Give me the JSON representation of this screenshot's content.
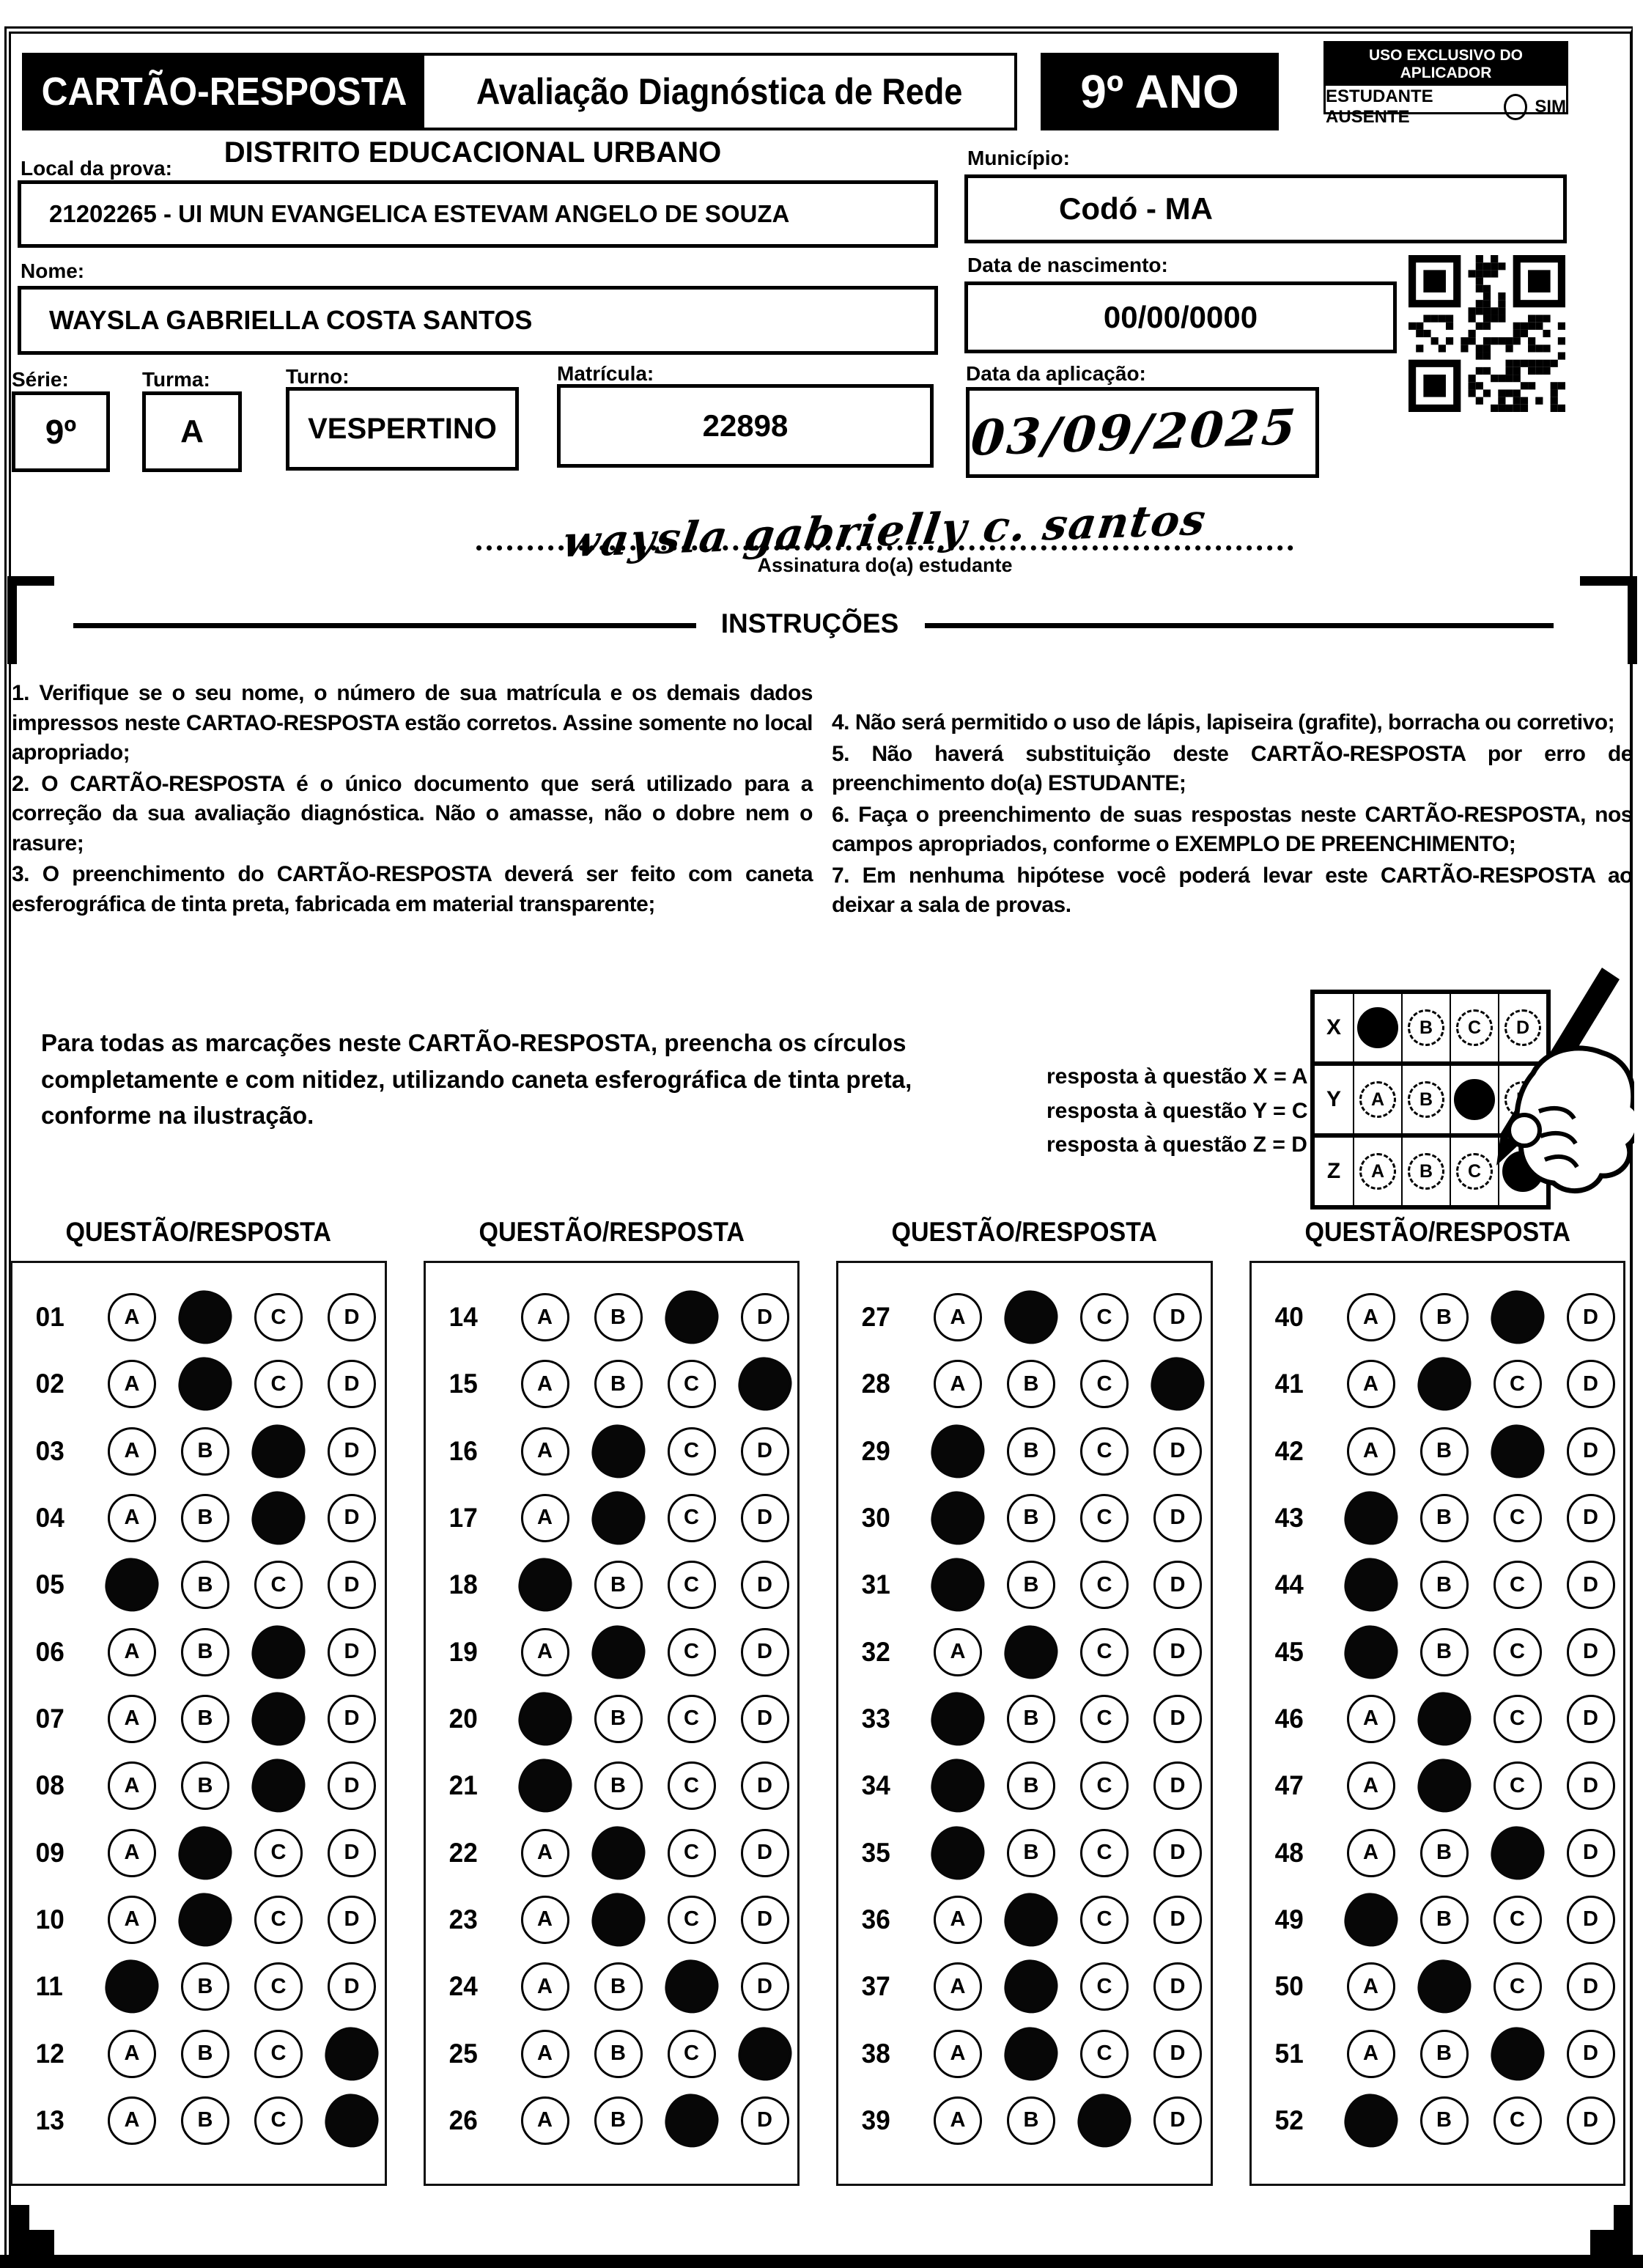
{
  "header": {
    "card_title": "CARTÃO-RESPOSTA",
    "exam_title": "Avaliação Diagnóstica de Rede",
    "grade": "9º ANO",
    "applicator_box_title": "USO EXCLUSIVO DO APLICADOR",
    "absent_label": "ESTUDANTE AUSENTE",
    "absent_option": "SIM"
  },
  "fields": {
    "local_label": "Local da prova:",
    "district": "DISTRITO EDUCACIONAL URBANO",
    "school": "21202265 - UI MUN EVANGELICA ESTEVAM ANGELO DE SOUZA",
    "municipio_label": "Município:",
    "municipio": "Codó - MA",
    "nome_label": "Nome:",
    "nome": "WAYSLA GABRIELLA COSTA SANTOS",
    "nascimento_label": "Data de nascimento:",
    "nascimento": "00/00/0000",
    "serie_label": "Série:",
    "serie": "9º",
    "turma_label": "Turma:",
    "turma": "A",
    "turno_label": "Turno:",
    "turno": "VESPERTINO",
    "matricula_label": "Matrícula:",
    "matricula": "22898",
    "aplicacao_label": "Data da aplicação:",
    "aplicacao": "03/09/2025",
    "assinatura": "waysla gabrielly c. santos",
    "assinatura_label": "Assinatura do(a) estudante"
  },
  "instructions": {
    "title": "INSTRUÇÕES",
    "left": [
      "1. Verifique se o seu nome, o número de sua matrícula e os demais dados impressos neste CARTAO-RESPOSTA estão corretos. Assine somente no local apropriado;",
      "2. O CARTÃO-RESPOSTA é o único documento que será utilizado para a correção da sua avaliação diagnóstica. Não o amasse, não o dobre nem o rasure;",
      "3. O preenchimento do CARTÃO-RESPOSTA deverá ser feito com caneta esferográfica de tinta preta, fabricada em material transparente;"
    ],
    "right": [
      "4. Não será permitido o uso de lápis, lapiseira (grafite), borracha ou corretivo;",
      "5. Não haverá substituição deste CARTÃO-RESPOSTA por erro de preenchimento do(a) ESTUDANTE;",
      "6. Faça o preenchimento de suas respostas neste CARTÃO-RESPOSTA, nos campos apropriados, conforme o EXEMPLO DE PREENCHIMENTO;",
      "7. Em nenhuma hipótese você poderá levar este CARTÃO-RESPOSTA ao deixar a sala de provas."
    ]
  },
  "marking": {
    "paragraph": "Para todas as marcações neste CARTÃO-RESPOSTA, preencha os círculos completamente e com nitidez, utilizando caneta esferográfica de tinta preta, conforme na ilustração.",
    "example_lines": [
      "resposta à questão X = A",
      "resposta à questão Y = C",
      "resposta à questão Z = D"
    ],
    "options": [
      "A",
      "B",
      "C",
      "D"
    ],
    "example_rows": [
      {
        "label": "X",
        "answer": "A"
      },
      {
        "label": "Y",
        "answer": "C"
      },
      {
        "label": "Z",
        "answer": "D"
      }
    ]
  },
  "answers": {
    "column_header": "QUESTÃO/RESPOSTA",
    "options": [
      "A",
      "B",
      "C",
      "D"
    ],
    "columns": [
      [
        {
          "q": "01",
          "a": "B"
        },
        {
          "q": "02",
          "a": "B"
        },
        {
          "q": "03",
          "a": "C"
        },
        {
          "q": "04",
          "a": "C"
        },
        {
          "q": "05",
          "a": "A"
        },
        {
          "q": "06",
          "a": "C"
        },
        {
          "q": "07",
          "a": "C"
        },
        {
          "q": "08",
          "a": "C"
        },
        {
          "q": "09",
          "a": "B"
        },
        {
          "q": "10",
          "a": "B"
        },
        {
          "q": "11",
          "a": "A"
        },
        {
          "q": "12",
          "a": "D"
        },
        {
          "q": "13",
          "a": "D"
        }
      ],
      [
        {
          "q": "14",
          "a": "C"
        },
        {
          "q": "15",
          "a": "D"
        },
        {
          "q": "16",
          "a": "B"
        },
        {
          "q": "17",
          "a": "B"
        },
        {
          "q": "18",
          "a": "A"
        },
        {
          "q": "19",
          "a": "B"
        },
        {
          "q": "20",
          "a": "A"
        },
        {
          "q": "21",
          "a": "A"
        },
        {
          "q": "22",
          "a": "B"
        },
        {
          "q": "23",
          "a": "B"
        },
        {
          "q": "24",
          "a": "C"
        },
        {
          "q": "25",
          "a": "D"
        },
        {
          "q": "26",
          "a": "C"
        }
      ],
      [
        {
          "q": "27",
          "a": "B"
        },
        {
          "q": "28",
          "a": "D"
        },
        {
          "q": "29",
          "a": "A"
        },
        {
          "q": "30",
          "a": "A"
        },
        {
          "q": "31",
          "a": "A"
        },
        {
          "q": "32",
          "a": "B"
        },
        {
          "q": "33",
          "a": "A"
        },
        {
          "q": "34",
          "a": "A"
        },
        {
          "q": "35",
          "a": "A"
        },
        {
          "q": "36",
          "a": "B"
        },
        {
          "q": "37",
          "a": "B"
        },
        {
          "q": "38",
          "a": "B"
        },
        {
          "q": "39",
          "a": "C"
        }
      ],
      [
        {
          "q": "40",
          "a": "C"
        },
        {
          "q": "41",
          "a": "B"
        },
        {
          "q": "42",
          "a": "C"
        },
        {
          "q": "43",
          "a": "A"
        },
        {
          "q": "44",
          "a": "A"
        },
        {
          "q": "45",
          "a": "A"
        },
        {
          "q": "46",
          "a": "B"
        },
        {
          "q": "47",
          "a": "B"
        },
        {
          "q": "48",
          "a": "C"
        },
        {
          "q": "49",
          "a": "A"
        },
        {
          "q": "50",
          "a": "B"
        },
        {
          "q": "51",
          "a": "C"
        },
        {
          "q": "52",
          "a": "A"
        }
      ]
    ]
  }
}
